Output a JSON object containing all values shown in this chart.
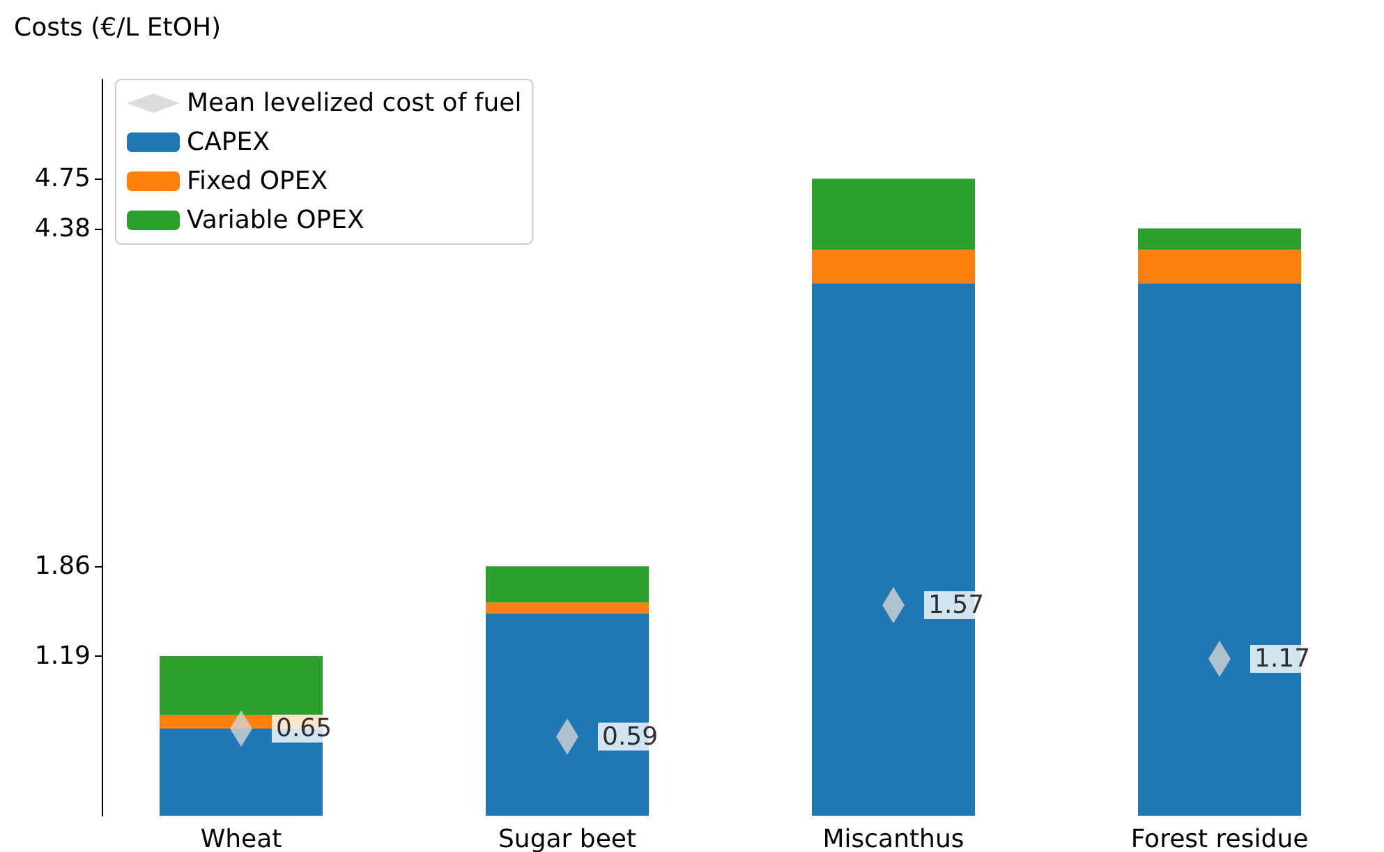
{
  "chart_data": {
    "type": "bar",
    "ylabel": "Costs (€/L EtOH)",
    "categories": [
      "Wheat",
      "Sugar beet",
      "Miscanthus",
      "Forest residue"
    ],
    "stacked": true,
    "series": [
      {
        "name": "Mean levelized cost of fuel",
        "type": "scatter",
        "marker": "diamond",
        "color": "#d3d3d3",
        "x": [
          "Wheat",
          "Sugar beet",
          "Miscanthus",
          "Forest residue"
        ],
        "values": [
          0.65,
          0.59,
          1.57,
          1.17
        ],
        "value_labels": [
          "0.65",
          "0.59",
          "1.57",
          "1.17"
        ]
      },
      {
        "name": "CAPEX",
        "color": "#1f77b4",
        "values": [
          0.65,
          1.51,
          3.97,
          3.97
        ]
      },
      {
        "name": "Fixed OPEX",
        "color": "#ff7f0e",
        "values": [
          0.1,
          0.08,
          0.25,
          0.25
        ]
      },
      {
        "name": "Variable OPEX",
        "color": "#2ca02c",
        "values": [
          0.44,
          0.27,
          0.53,
          0.16
        ]
      }
    ],
    "ylim": [
      0,
      5.49
    ],
    "yticks": [
      1.19,
      1.86,
      4.38,
      4.75
    ],
    "grid": false,
    "legend": "top left"
  }
}
